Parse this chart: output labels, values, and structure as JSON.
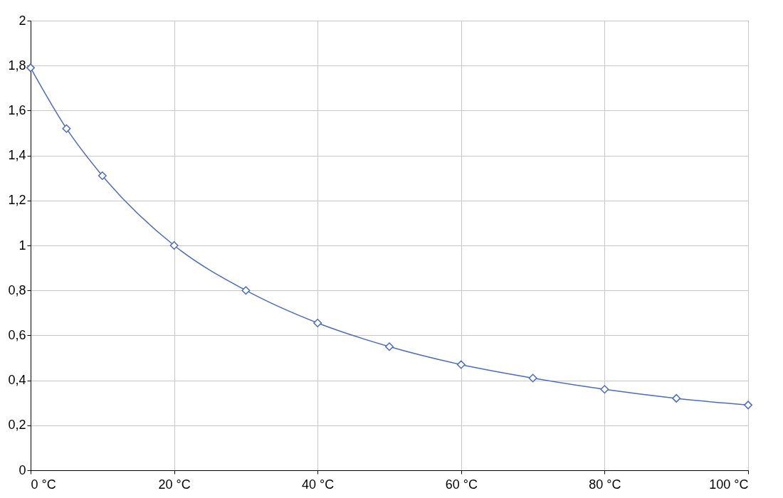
{
  "chart_data": {
    "type": "line",
    "x": [
      0,
      5,
      10,
      20,
      30,
      40,
      50,
      60,
      70,
      80,
      90,
      100
    ],
    "series": [
      {
        "color": "#4a6cc8",
        "values": [
          1.79,
          1.52,
          1.31,
          1.0,
          0.8,
          0.655,
          0.55,
          0.47,
          0.41,
          0.36,
          0.32,
          0.29
        ]
      }
    ],
    "xlim": [
      0,
      100
    ],
    "xticks": [
      {
        "value": 0,
        "label": "0 °C"
      },
      {
        "value": 20,
        "label": "20 °C"
      },
      {
        "value": 40,
        "label": "40 °C"
      },
      {
        "value": 60,
        "label": "60 °C"
      },
      {
        "value": 80,
        "label": "80 °C"
      },
      {
        "value": 100,
        "label": "100 °C"
      }
    ],
    "ylim": [
      0,
      2
    ],
    "yticks": [
      0,
      {
        "value": 0.2,
        "label": "0,2"
      },
      {
        "value": 0.4,
        "label": "0,4"
      },
      {
        "value": 0.6,
        "label": "0,6"
      },
      {
        "value": 0.8,
        "label": "0,8"
      },
      1,
      {
        "value": 1.2,
        "label": "1,2"
      },
      {
        "value": 1.4,
        "label": "1,4"
      },
      {
        "value": 1.6,
        "label": "1,6"
      },
      {
        "value": 1.8,
        "label": "1,8"
      },
      2
    ],
    "grid": true,
    "marker": "diamond",
    "line_style": "solid"
  }
}
